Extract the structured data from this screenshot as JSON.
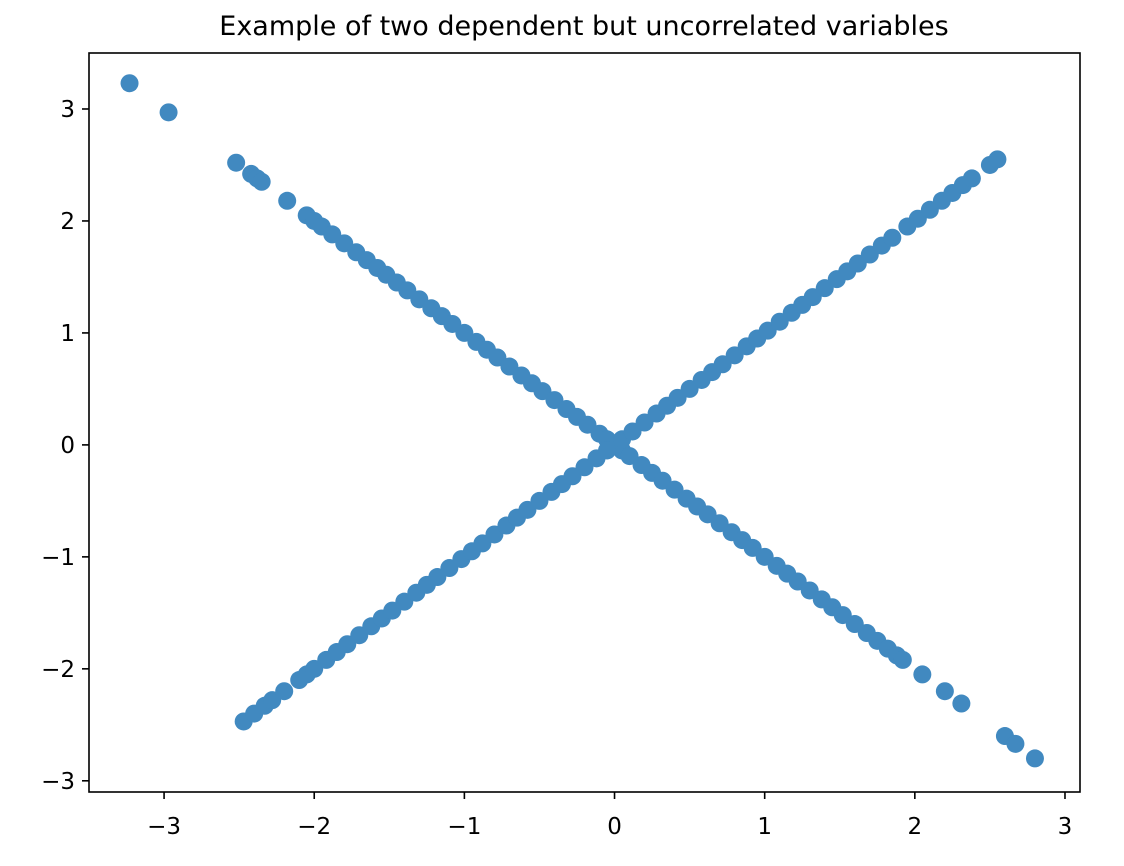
{
  "chart_data": {
    "type": "scatter",
    "title": "Example of two dependent but uncorrelated variables",
    "xlabel": "",
    "ylabel": "",
    "xlim": [
      -3.5,
      3.1
    ],
    "ylim": [
      -3.1,
      3.5
    ],
    "grid": false,
    "legend": "none",
    "x_ticks": [
      -3,
      -2,
      -1,
      0,
      1,
      2,
      3
    ],
    "x_tick_labels": [
      "−3",
      "−2",
      "−1",
      "0",
      "1",
      "2",
      "3"
    ],
    "y_ticks": [
      -3,
      -2,
      -1,
      0,
      1,
      2,
      3
    ],
    "y_tick_labels": [
      "−3",
      "−2",
      "−1",
      "0",
      "1",
      "2",
      "3"
    ],
    "marker_color": "#4189c0",
    "series": [
      {
        "x": [
          -3.23,
          -2.97,
          -2.52,
          -2.42,
          -2.38,
          -2.35,
          -2.18,
          -2.05,
          -2.0,
          -1.95,
          -1.88,
          -1.8,
          -1.72,
          -1.65,
          -1.58,
          -1.52,
          -1.45,
          -1.38,
          -1.3,
          -1.22,
          -1.15,
          -1.08,
          -1.0,
          -0.92,
          -0.85,
          -0.78,
          -0.7,
          -0.62,
          -0.55,
          -0.48,
          -0.4,
          -0.32,
          -0.25,
          -0.18,
          -0.1,
          -0.05,
          0.0,
          0.05,
          0.1,
          0.18,
          0.25,
          0.32,
          0.4,
          0.48,
          0.55,
          0.62,
          0.7,
          0.78,
          0.85,
          0.92,
          1.0,
          1.08,
          1.15,
          1.22,
          1.3,
          1.38,
          1.45,
          1.52,
          1.6,
          1.68,
          1.75,
          1.82,
          1.88,
          1.92,
          2.05,
          2.2,
          2.31,
          2.6,
          2.67,
          2.8,
          -2.47,
          -2.4,
          -2.33,
          -2.28,
          -2.2,
          -2.1,
          -2.05,
          -2.0,
          -1.92,
          -1.85,
          -1.78,
          -1.7,
          -1.62,
          -1.55,
          -1.48,
          -1.4,
          -1.32,
          -1.25,
          -1.18,
          -1.1,
          -1.02,
          -0.95,
          -0.88,
          -0.8,
          -0.72,
          -0.65,
          -0.58,
          -0.5,
          -0.42,
          -0.35,
          -0.28,
          -0.2,
          -0.12,
          -0.05,
          0.05,
          0.12,
          0.2,
          0.28,
          0.35,
          0.42,
          0.5,
          0.58,
          0.65,
          0.72,
          0.8,
          0.88,
          0.95,
          1.02,
          1.1,
          1.18,
          1.25,
          1.32,
          1.4,
          1.48,
          1.55,
          1.62,
          1.7,
          1.78,
          1.85,
          1.95,
          2.02,
          2.1,
          2.18,
          2.25,
          2.32,
          2.38,
          2.5,
          2.55
        ],
        "y": [
          3.23,
          2.97,
          2.52,
          2.42,
          2.38,
          2.35,
          2.18,
          2.05,
          2.0,
          1.95,
          1.88,
          1.8,
          1.72,
          1.65,
          1.58,
          1.52,
          1.45,
          1.38,
          1.3,
          1.22,
          1.15,
          1.08,
          1.0,
          0.92,
          0.85,
          0.78,
          0.7,
          0.62,
          0.55,
          0.48,
          0.4,
          0.32,
          0.25,
          0.18,
          0.1,
          0.05,
          0.0,
          -0.05,
          -0.1,
          -0.18,
          -0.25,
          -0.32,
          -0.4,
          -0.48,
          -0.55,
          -0.62,
          -0.7,
          -0.78,
          -0.85,
          -0.92,
          -1.0,
          -1.08,
          -1.15,
          -1.22,
          -1.3,
          -1.38,
          -1.45,
          -1.52,
          -1.6,
          -1.68,
          -1.75,
          -1.82,
          -1.88,
          -1.92,
          -2.05,
          -2.2,
          -2.31,
          -2.6,
          -2.67,
          -2.8,
          -2.47,
          -2.4,
          -2.33,
          -2.28,
          -2.2,
          -2.1,
          -2.05,
          -2.0,
          -1.92,
          -1.85,
          -1.78,
          -1.7,
          -1.62,
          -1.55,
          -1.48,
          -1.4,
          -1.32,
          -1.25,
          -1.18,
          -1.1,
          -1.02,
          -0.95,
          -0.88,
          -0.8,
          -0.72,
          -0.65,
          -0.58,
          -0.5,
          -0.42,
          -0.35,
          -0.28,
          -0.2,
          -0.12,
          -0.05,
          0.05,
          0.12,
          0.2,
          0.28,
          0.35,
          0.42,
          0.5,
          0.58,
          0.65,
          0.72,
          0.8,
          0.88,
          0.95,
          1.02,
          1.1,
          1.18,
          1.25,
          1.32,
          1.4,
          1.48,
          1.55,
          1.62,
          1.7,
          1.78,
          1.85,
          1.95,
          2.02,
          2.1,
          2.18,
          2.25,
          2.32,
          2.38,
          2.5,
          2.55
        ]
      }
    ]
  }
}
